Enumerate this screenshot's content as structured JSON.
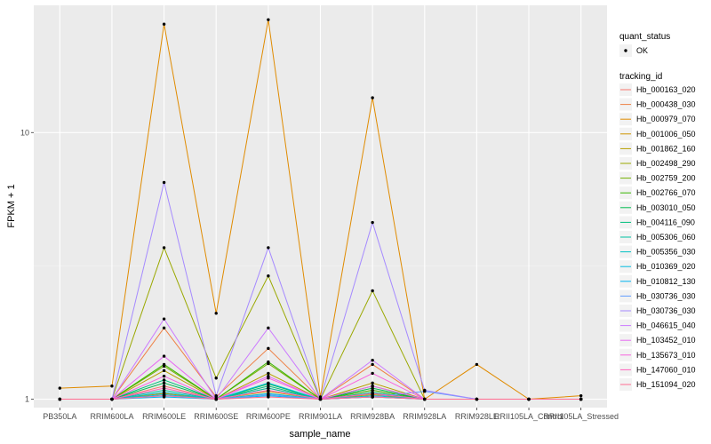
{
  "chart_data": {
    "type": "line",
    "title": "",
    "xlabel": "sample_name",
    "ylabel": "FPKM + 1",
    "y_scale": "log10",
    "ylim": [
      0.93,
      30
    ],
    "y_ticks": [
      1,
      10
    ],
    "y_tick_labels": [
      "1",
      "10"
    ],
    "grid": true,
    "legend_position": "right",
    "categories": [
      "PB350LA",
      "RRIM600LA",
      "RRIM600LE",
      "RRIM600SE",
      "RRIM600PE",
      "RRIM901LA",
      "RRIM928BA",
      "RRIM928LA",
      "RRIM928LE",
      "RRII105LA_Control",
      "RRII105LA_Stressed"
    ],
    "quant_status_legend": {
      "title": "quant_status",
      "entries": [
        "OK"
      ]
    },
    "tracking_legend_title": "tracking_id",
    "series": [
      {
        "name": "Hb_000163_020",
        "color": "#F8766D",
        "values": [
          1,
          1,
          1.12,
          1,
          1.1,
          1,
          1.08,
          1,
          1,
          1,
          1
        ]
      },
      {
        "name": "Hb_000438_030",
        "color": "#EE8045",
        "values": [
          1,
          1,
          1.85,
          1.02,
          1.55,
          1,
          1.35,
          1,
          1,
          1,
          1
        ]
      },
      {
        "name": "Hb_000979_070",
        "color": "#E08B00",
        "values": [
          1.1,
          1.12,
          25.5,
          2.1,
          26.5,
          1.02,
          13.5,
          1,
          1.35,
          1,
          1.03
        ]
      },
      {
        "name": "Hb_001006_050",
        "color": "#CE9500",
        "values": [
          1,
          1,
          1.05,
          1,
          1.07,
          1,
          1.04,
          1,
          1,
          1,
          1
        ]
      },
      {
        "name": "Hb_001862_160",
        "color": "#B79F00",
        "values": [
          1,
          1,
          1.28,
          1,
          1.25,
          1,
          1.15,
          1,
          1,
          1,
          1
        ]
      },
      {
        "name": "Hb_002498_290",
        "color": "#9AA800",
        "values": [
          1,
          1,
          3.7,
          1.2,
          2.9,
          1,
          2.55,
          1,
          1,
          1,
          1
        ]
      },
      {
        "name": "Hb_002759_200",
        "color": "#73B000",
        "values": [
          1,
          1,
          1.33,
          1,
          1.36,
          1,
          1.12,
          1,
          1,
          1,
          1
        ]
      },
      {
        "name": "Hb_002766_070",
        "color": "#39B600",
        "values": [
          1,
          1,
          1.35,
          1,
          1.38,
          1,
          1.08,
          1,
          1,
          1,
          1
        ]
      },
      {
        "name": "Hb_003010_050",
        "color": "#00BB4E",
        "values": [
          1,
          1,
          1.15,
          1,
          1.14,
          1,
          1.1,
          1,
          1,
          1,
          1
        ]
      },
      {
        "name": "Hb_004116_090",
        "color": "#00BF7D",
        "values": [
          1,
          1,
          1.18,
          1,
          1.12,
          1,
          1.06,
          1,
          1,
          1,
          1
        ]
      },
      {
        "name": "Hb_005306_060",
        "color": "#00C1A3",
        "values": [
          1,
          1,
          1.08,
          1,
          1.1,
          1,
          1.05,
          1,
          1,
          1,
          1
        ]
      },
      {
        "name": "Hb_005356_030",
        "color": "#00C0C4",
        "values": [
          1,
          1,
          1.06,
          1,
          1.05,
          1,
          1.03,
          1,
          1,
          1,
          1
        ]
      },
      {
        "name": "Hb_010369_020",
        "color": "#00BCE0",
        "values": [
          1,
          1,
          1.04,
          1,
          1.15,
          1,
          1.02,
          1,
          1,
          1,
          1
        ]
      },
      {
        "name": "Hb_010812_130",
        "color": "#00B4F0",
        "values": [
          1,
          1,
          1.02,
          1,
          1.03,
          1,
          1.02,
          1,
          1,
          1,
          1
        ]
      },
      {
        "name": "Hb_030736_030",
        "color": "#619CFF",
        "values": [
          1,
          1,
          1.03,
          1,
          1.04,
          1,
          1.02,
          1.07,
          1,
          1,
          1
        ]
      },
      {
        "name": "Hb_030736_030",
        "color": "#A58AFF",
        "values": [
          1,
          1,
          6.5,
          1.03,
          3.7,
          1,
          4.6,
          1.08,
          1,
          1,
          1
        ]
      },
      {
        "name": "Hb_046615_040",
        "color": "#CC79FF",
        "values": [
          1,
          1,
          2.0,
          1,
          1.85,
          1,
          1.4,
          1,
          1,
          1,
          1
        ]
      },
      {
        "name": "Hb_103452_010",
        "color": "#E76BF3",
        "values": [
          1,
          1,
          1.45,
          1,
          1.22,
          1,
          1.12,
          1,
          1,
          1,
          1
        ]
      },
      {
        "name": "Hb_135673_010",
        "color": "#F863DF",
        "values": [
          1,
          1,
          1.22,
          1,
          1.2,
          1,
          1.25,
          1,
          1,
          1,
          1
        ]
      },
      {
        "name": "Hb_147060_010",
        "color": "#FF62BC",
        "values": [
          1,
          1,
          1.1,
          1,
          1.08,
          1,
          1.05,
          1,
          1,
          1,
          1
        ]
      },
      {
        "name": "Hb_151094_020",
        "color": "#FF6C91",
        "values": [
          1,
          1,
          1.03,
          1,
          1.02,
          1,
          1.02,
          1,
          1,
          1,
          1
        ]
      }
    ]
  }
}
